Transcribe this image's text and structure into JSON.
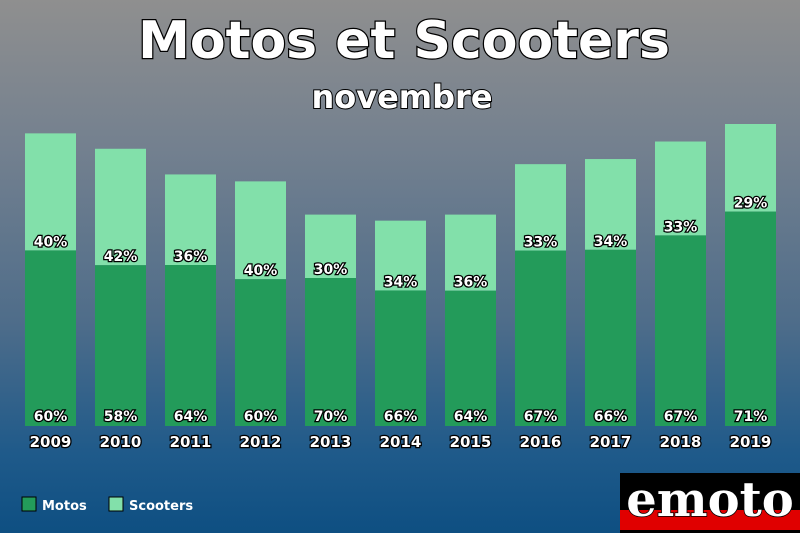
{
  "colors": {
    "motos": "#239b5a",
    "scooters": "#82e0aa",
    "logo_bg": "#000000",
    "logo_stripe": "#e00000"
  },
  "logo": {
    "text": "emoto"
  },
  "chart_data": {
    "type": "bar",
    "stacked": true,
    "title": "Motos et Scooters",
    "subtitle": "novembre",
    "categories": [
      "2009",
      "2010",
      "2011",
      "2012",
      "2013",
      "2014",
      "2015",
      "2016",
      "2017",
      "2018",
      "2019"
    ],
    "series": [
      {
        "name": "Motos",
        "values": [
          60,
          58,
          64,
          60,
          70,
          66,
          64,
          67,
          66,
          67,
          71
        ],
        "labels": [
          "60%",
          "58%",
          "64%",
          "60%",
          "70%",
          "66%",
          "64%",
          "67%",
          "66%",
          "67%",
          "71%"
        ]
      },
      {
        "name": "Scooters",
        "values": [
          40,
          42,
          36,
          40,
          30,
          34,
          36,
          33,
          34,
          33,
          29
        ],
        "labels": [
          "40%",
          "42%",
          "36%",
          "40%",
          "30%",
          "34%",
          "36%",
          "33%",
          "34%",
          "33%",
          "29%"
        ]
      }
    ],
    "totals_relative": [
      0.969,
      0.918,
      0.833,
      0.81,
      0.7,
      0.68,
      0.7,
      0.867,
      0.884,
      0.942,
      1.0
    ],
    "legend_position": "bottom-left",
    "grid": false
  }
}
